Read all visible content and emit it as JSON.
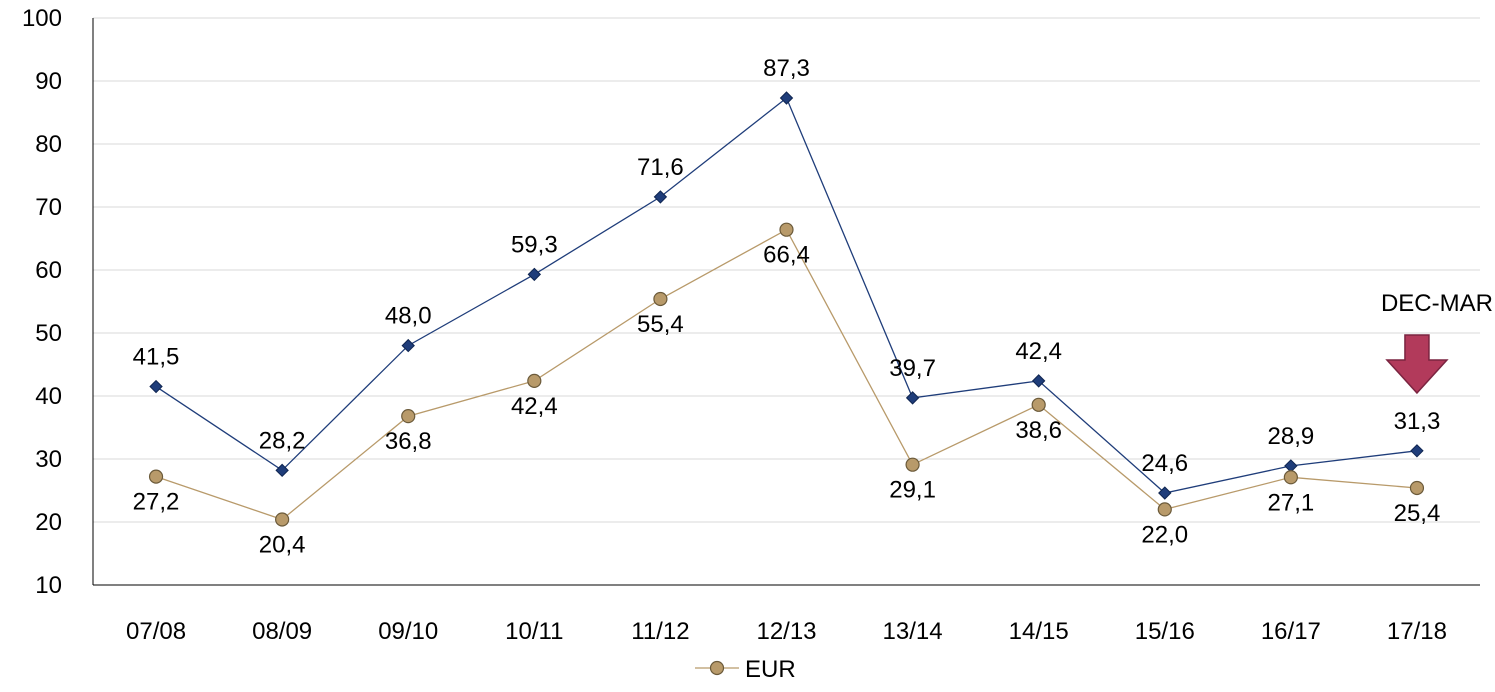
{
  "chart_data": {
    "type": "line",
    "categories": [
      "07/08",
      "08/09",
      "09/10",
      "10/11",
      "11/12",
      "12/13",
      "13/14",
      "14/15",
      "15/16",
      "16/17",
      "17/18"
    ],
    "ylim": [
      10,
      100
    ],
    "yticks": [
      10,
      20,
      30,
      40,
      50,
      60,
      70,
      80,
      90,
      100
    ],
    "grid": true,
    "legend_position": "bottom",
    "series": [
      {
        "values": [
          41.5,
          28.2,
          48.0,
          59.3,
          71.6,
          87.3,
          39.7,
          42.4,
          24.6,
          28.9,
          31.3
        ],
        "labels": [
          "41,5",
          "28,2",
          "48,0",
          "59,3",
          "71,6",
          "87,3",
          "39,7",
          "42,4",
          "24,6",
          "28,9",
          "31,3"
        ],
        "color": "#1F3D7A",
        "marker": "diamond"
      },
      {
        "name": "EUR",
        "values": [
          27.2,
          20.4,
          36.8,
          42.4,
          55.4,
          66.4,
          29.1,
          38.6,
          22.0,
          27.1,
          25.4
        ],
        "labels": [
          "27,2",
          "20,4",
          "36,8",
          "42,4",
          "55,4",
          "66,4",
          "29,1",
          "38,6",
          "22,0",
          "27,1",
          "25,4"
        ],
        "color": "#B89A6A",
        "marker": "circle"
      }
    ],
    "annotation": {
      "text": "DEC-MAR",
      "category": "17/18",
      "arrow_color": "#B23A5B"
    }
  }
}
